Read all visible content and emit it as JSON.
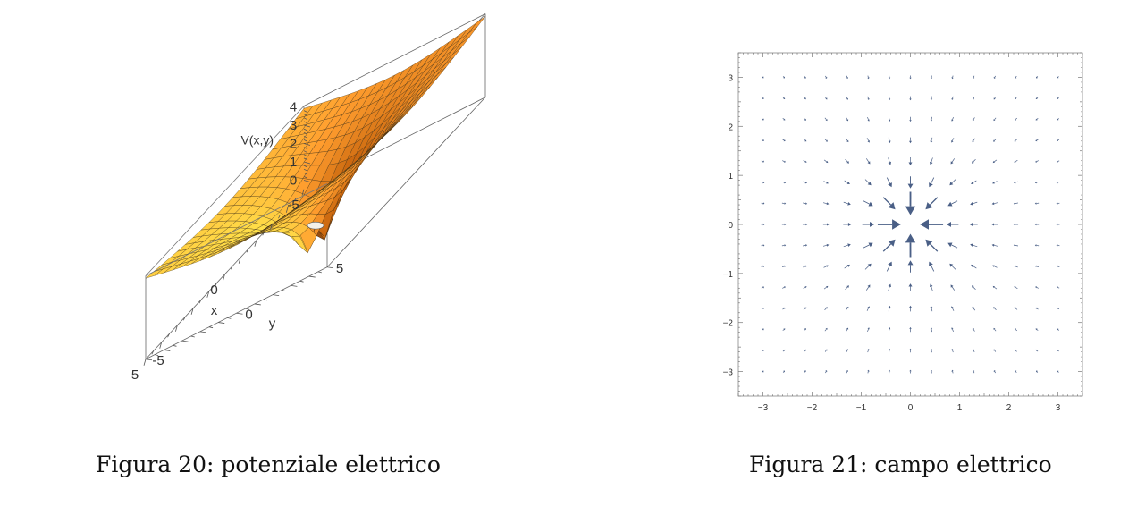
{
  "figures": [
    {
      "caption": "Figura 20: potenziale elettrico",
      "chart_data": {
        "type": "surface3d",
        "function": "V(x,y) = log(x^2 + y^2)",
        "zlabel": "V(x,y)",
        "xlabel": "x",
        "ylabel": "y",
        "xticks": [
          -5,
          0,
          5
        ],
        "yticks": [
          -5,
          0,
          5
        ],
        "zticks": [
          0,
          1,
          2,
          3,
          4
        ],
        "xlim": [
          -5,
          5
        ],
        "ylim": [
          -5,
          5
        ],
        "zlim": [
          -0.5,
          4
        ],
        "grid_lines": 20,
        "colors": {
          "high": "#ffe34a",
          "mid": "#ff9d2e",
          "low": "#c9660e",
          "mesh": "#3a2a10"
        }
      }
    },
    {
      "caption": "Figura 21: campo elettrico",
      "chart_data": {
        "type": "vector_field",
        "function": "E(x,y) = -(x, y) / (x^2 + y^2)",
        "xlim": [
          -3.5,
          3.5
        ],
        "ylim": [
          -3.5,
          3.5
        ],
        "xticks": [
          -3,
          -2,
          -1,
          0,
          1,
          2,
          3
        ],
        "yticks": [
          -3,
          -2,
          -1,
          0,
          1,
          2,
          3
        ],
        "sample_start": -3,
        "sample_step": 0.4286,
        "sample_count": 15,
        "arrow_color": "#4a5f86"
      }
    }
  ]
}
